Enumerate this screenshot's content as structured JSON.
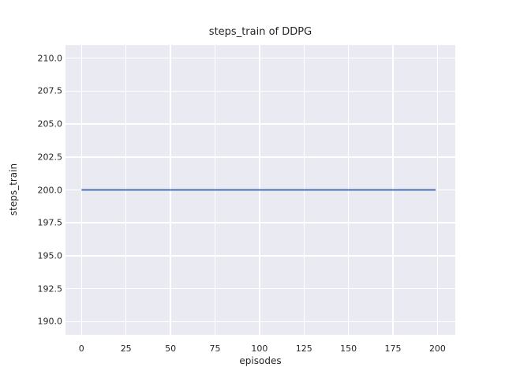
{
  "chart_data": {
    "type": "line",
    "title": "steps_train of DDPG",
    "xlabel": "episodes",
    "ylabel": "steps_train",
    "xlim": [
      -9,
      210
    ],
    "ylim": [
      189,
      211
    ],
    "grid": true,
    "legend_position": "none",
    "xticks": {
      "values": [
        0,
        25,
        50,
        75,
        100,
        125,
        150,
        175,
        200
      ],
      "labels": [
        "0",
        "25",
        "50",
        "75",
        "100",
        "125",
        "150",
        "175",
        "200"
      ]
    },
    "yticks": {
      "values": [
        190,
        192.5,
        195,
        197.5,
        200,
        202.5,
        205,
        207.5,
        210
      ],
      "labels": [
        "190.0",
        "192.5",
        "195.0",
        "197.5",
        "200.0",
        "202.5",
        "205.0",
        "207.5",
        "210.0"
      ]
    },
    "series": [
      {
        "name": "steps_train",
        "color": "#4c72b0",
        "x": [
          0,
          199
        ],
        "y": [
          200,
          200
        ]
      }
    ],
    "styles": {
      "figure_bg": "#ffffff",
      "plot_bg": "#eaeaf2",
      "grid_color": "#ffffff",
      "text_color": "#262626",
      "line_width": 2
    }
  }
}
